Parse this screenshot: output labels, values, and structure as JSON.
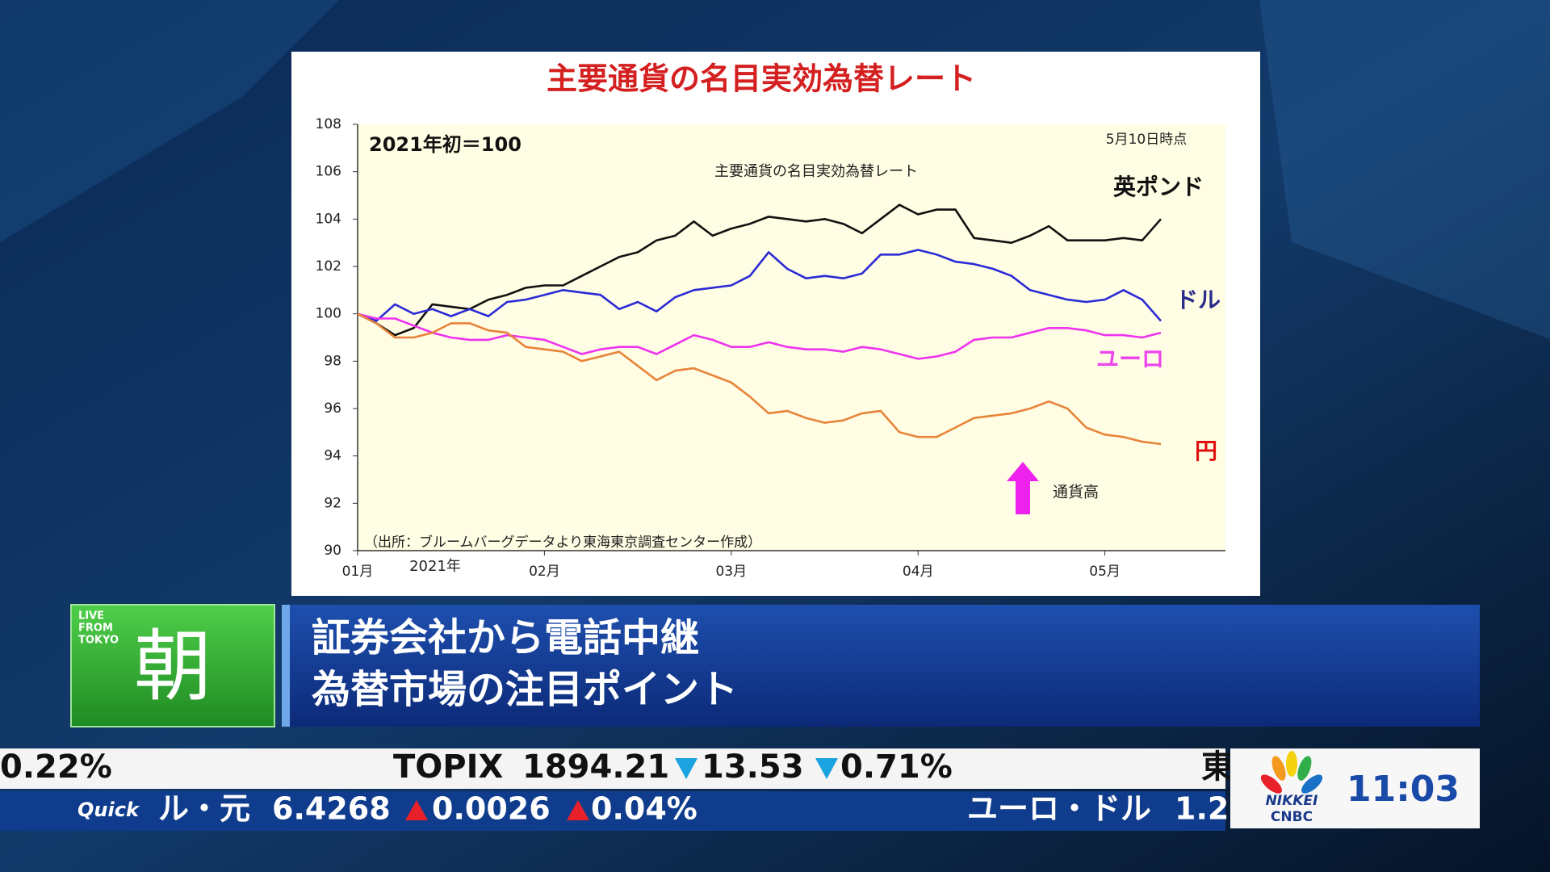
{
  "chart_data": {
    "type": "line",
    "title": "主要通貨の名目実効為替レート",
    "subtitle": "主要通貨の名目実効為替レート",
    "base_note": "2021年初＝100",
    "date_note": "5月10日時点",
    "source": "（出所：ブルームバーグデータより東海東京調査センター作成）",
    "x_label": "2021年",
    "annotation": "通貨高",
    "categories": [
      "01月",
      null,
      null,
      null,
      null,
      null,
      null,
      null,
      null,
      null,
      "02月",
      null,
      null,
      null,
      null,
      null,
      null,
      null,
      null,
      null,
      "03月",
      null,
      null,
      null,
      null,
      null,
      null,
      null,
      null,
      null,
      "04月",
      null,
      null,
      null,
      null,
      null,
      null,
      null,
      null,
      null,
      "05月",
      null,
      null,
      null
    ],
    "series": [
      {
        "name": "英ポンド",
        "color": "#111111",
        "label_color": "#111111",
        "values": [
          100,
          99.6,
          99.1,
          99.4,
          100.4,
          100.3,
          100.2,
          100.6,
          100.8,
          101.1,
          101.2,
          101.2,
          101.6,
          102.0,
          102.4,
          102.6,
          103.1,
          103.3,
          103.9,
          103.3,
          103.6,
          103.8,
          104.1,
          104.0,
          103.9,
          104.0,
          103.8,
          103.4,
          104.0,
          104.6,
          104.2,
          104.4,
          104.4,
          103.2,
          103.1,
          103.0,
          103.3,
          103.7,
          103.1,
          103.1,
          103.1,
          103.2,
          103.1,
          104.0
        ]
      },
      {
        "name": "ドル",
        "color": "#2b2bd6",
        "label_color": "#2a2a8a",
        "values": [
          100,
          99.7,
          100.4,
          100.0,
          100.2,
          99.9,
          100.2,
          99.9,
          100.5,
          100.6,
          100.8,
          101.0,
          100.9,
          100.8,
          100.2,
          100.5,
          100.1,
          100.7,
          101.0,
          101.1,
          101.2,
          101.6,
          102.6,
          101.9,
          101.5,
          101.6,
          101.5,
          101.7,
          102.5,
          102.5,
          102.7,
          102.5,
          102.2,
          102.1,
          101.9,
          101.6,
          101.0,
          100.8,
          100.6,
          100.5,
          100.6,
          101.0,
          100.6,
          99.7
        ]
      },
      {
        "name": "ユーロ",
        "color": "#ee33ee",
        "label_color": "#ee44ee",
        "values": [
          100,
          99.8,
          99.8,
          99.5,
          99.2,
          99.0,
          98.9,
          98.9,
          99.1,
          99.0,
          98.9,
          98.6,
          98.3,
          98.5,
          98.6,
          98.6,
          98.3,
          98.7,
          99.1,
          98.9,
          98.6,
          98.6,
          98.8,
          98.6,
          98.5,
          98.5,
          98.4,
          98.6,
          98.5,
          98.3,
          98.1,
          98.2,
          98.4,
          98.9,
          99.0,
          99.0,
          99.2,
          99.4,
          99.4,
          99.3,
          99.1,
          99.1,
          99.0,
          99.2
        ]
      },
      {
        "name": "円",
        "color": "#e8843a",
        "label_color": "#e01010",
        "values": [
          100,
          99.6,
          99.0,
          99.0,
          99.2,
          99.6,
          99.6,
          99.3,
          99.2,
          98.6,
          98.5,
          98.4,
          98.0,
          98.2,
          98.4,
          97.8,
          97.2,
          97.6,
          97.7,
          97.4,
          97.1,
          96.5,
          95.8,
          95.9,
          95.6,
          95.4,
          95.5,
          95.8,
          95.9,
          95.0,
          94.8,
          94.8,
          95.2,
          95.6,
          95.7,
          95.8,
          96.0,
          96.3,
          96.0,
          95.2,
          94.9,
          94.8,
          94.6,
          94.5
        ]
      }
    ],
    "ylim": [
      90,
      108
    ],
    "yticks": [
      90,
      92,
      94,
      96,
      98,
      100,
      102,
      104,
      106,
      108
    ],
    "grid": false
  },
  "overlay": {
    "badge": {
      "live": "LIVE",
      "from": "FROM",
      "tokyo": "TOKYO",
      "program": "朝"
    },
    "headline": [
      "証券会社から電話中継",
      "為替市場の注目ポイント"
    ],
    "ticker_top": {
      "prev_pct": "0.22%",
      "index_name": "TOPIX",
      "index_value": "1894.21",
      "change": "13.53",
      "change_pct": "0.71%",
      "next": "東"
    },
    "ticker_bottom": {
      "brand": "Quick",
      "pair": "ル・元",
      "rate": "6.4268",
      "change": "0.0026",
      "change_pct": "0.04%",
      "next_pair": "ユーロ・ドル",
      "next_rate": "1.2"
    },
    "logo": [
      "NIKKEI",
      "CNBC"
    ],
    "clock": "11:03"
  }
}
